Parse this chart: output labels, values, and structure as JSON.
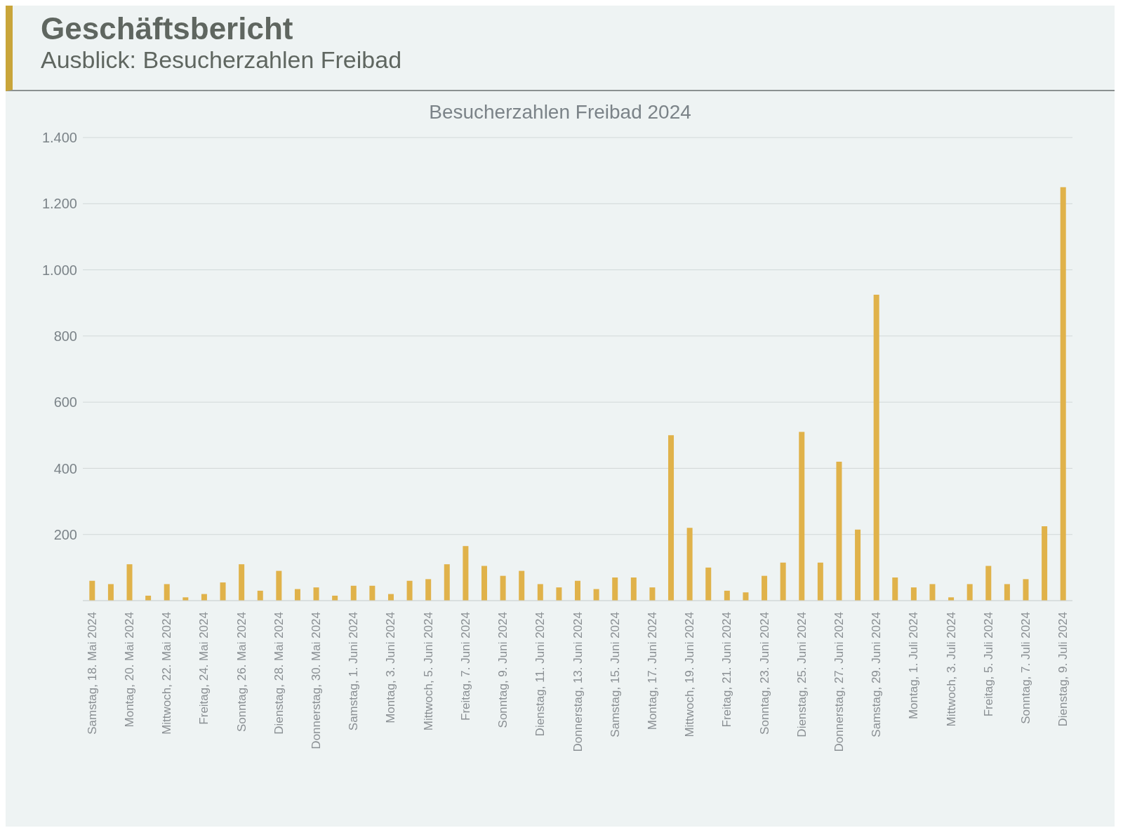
{
  "chart_data": {
    "type": "bar",
    "title": "Besucherzahlen Freibad 2024",
    "annotations": [
      "Geschäftsbericht",
      "Ausblick: Besucherzahlen Freibad"
    ],
    "categories": [
      "Samstag, 18. Mai 2024",
      null,
      "Montag, 20. Mai 2024",
      null,
      "Mittwoch, 22. Mai 2024",
      null,
      "Freitag, 24. Mai 2024",
      null,
      "Sonntag, 26. Mai 2024",
      null,
      "Dienstag, 28. Mai 2024",
      null,
      "Donnerstag, 30. Mai 2024",
      null,
      "Samstag, 1. Juni 2024",
      null,
      "Montag, 3. Juni 2024",
      null,
      "Mittwoch, 5. Juni 2024",
      null,
      "Freitag, 7. Juni 2024",
      null,
      "Sonntag, 9. Juni 2024",
      null,
      "Dienstag, 11. Juni 2024",
      null,
      "Donnerstag, 13. Juni 2024",
      null,
      "Samstag, 15. Juni 2024",
      null,
      "Montag, 17. Juni 2024",
      null,
      "Mittwoch, 19. Juni 2024",
      null,
      "Freitag, 21. Juni 2024",
      null,
      "Sonntag, 23. Juni 2024",
      null,
      "Dienstag, 25. Juni 2024",
      null,
      "Donnerstag, 27. Juni 2024",
      null,
      "Samstag, 29. Juni 2024",
      null,
      "Montag, 1. Juli 2024",
      null,
      "Mittwoch, 3. Juli 2024",
      null,
      "Freitag, 5. Juli 2024",
      null,
      "Sonntag, 7. Juli 2024",
      null,
      "Dienstag, 9. Juli 2024"
    ],
    "values": [
      60,
      50,
      110,
      15,
      50,
      10,
      20,
      55,
      110,
      30,
      90,
      35,
      40,
      15,
      45,
      45,
      20,
      60,
      65,
      110,
      165,
      105,
      75,
      90,
      50,
      40,
      60,
      35,
      70,
      70,
      40,
      500,
      220,
      100,
      30,
      25,
      75,
      115,
      510,
      115,
      420,
      215,
      925,
      70,
      40,
      50,
      10,
      50,
      105,
      50,
      65,
      225,
      1250
    ],
    "color": "#e0b24a",
    "ylim": [
      0,
      1400
    ],
    "yticks": [
      200,
      400,
      600,
      800,
      {
        "value": 1000,
        "label": "1.000"
      },
      {
        "value": 1200,
        "label": "1.200"
      },
      {
        "value": 1400,
        "label": "1.400"
      }
    ],
    "grid": "y"
  }
}
